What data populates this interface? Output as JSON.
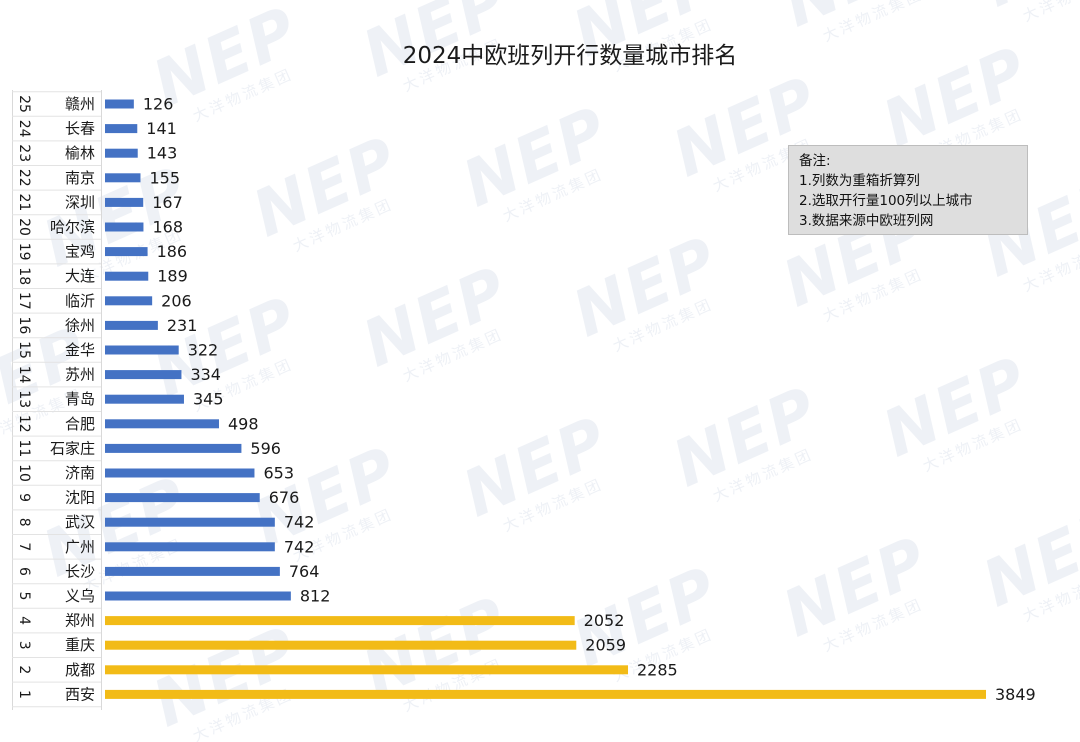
{
  "watermark": {
    "logo": "NEP",
    "text": "大洋物流集团"
  },
  "title": "2024中欧班列开行数量城市排名",
  "note": {
    "heading": "备注:",
    "lines": [
      "1.列数为重箱折算列",
      "2.选取开行量100列以上城市",
      "3.数据来源中欧班列网"
    ]
  },
  "colors": {
    "blue": "#4472c4",
    "gold": "#f2bb17"
  },
  "chart_data": {
    "type": "bar",
    "orientation": "horizontal",
    "title": "2024中欧班列开行数量城市排名",
    "ranks": [
      25,
      24,
      23,
      22,
      21,
      20,
      19,
      18,
      17,
      16,
      15,
      14,
      13,
      12,
      11,
      10,
      9,
      8,
      7,
      6,
      5,
      4,
      3,
      2,
      1
    ],
    "categories": [
      "赣州",
      "长春",
      "榆林",
      "南京",
      "深圳",
      "哈尔滨",
      "宝鸡",
      "大连",
      "临沂",
      "徐州",
      "金华",
      "苏州",
      "青岛",
      "合肥",
      "石家庄",
      "济南",
      "沈阳",
      "武汉",
      "广州",
      "长沙",
      "义乌",
      "郑州",
      "重庆",
      "成都",
      "西安"
    ],
    "values": [
      126,
      141,
      143,
      155,
      167,
      168,
      186,
      189,
      206,
      231,
      322,
      334,
      345,
      498,
      596,
      653,
      676,
      742,
      742,
      764,
      812,
      2052,
      2059,
      2285,
      3849
    ],
    "highlight_top": 4,
    "xlim": [
      0,
      3849
    ],
    "grid": false,
    "legend": "none"
  }
}
